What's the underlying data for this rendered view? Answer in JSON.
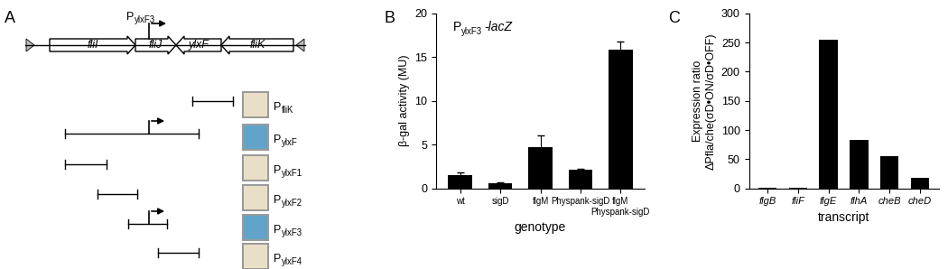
{
  "panel_labels": [
    "A",
    "B",
    "C"
  ],
  "diagram": {
    "genes": [
      {
        "name": "fliI",
        "direction": "right"
      },
      {
        "name": "fliJ",
        "direction": "right"
      },
      {
        "name": "ylxF",
        "direction": "left"
      },
      {
        "name": "fliK",
        "direction": "left"
      }
    ],
    "promoter": {
      "text": "P",
      "sub": "ylxF3"
    },
    "fragments": [
      {
        "text": "P",
        "sub": "fliK",
        "promoter": false,
        "color": "#e9dfc6"
      },
      {
        "text": "P",
        "sub": "ylxF",
        "promoter": true,
        "color": "#62a4c9"
      },
      {
        "text": "P",
        "sub": "ylxF1",
        "promoter": false,
        "color": "#e9dfc6"
      },
      {
        "text": "P",
        "sub": "ylxF2",
        "promoter": false,
        "color": "#e9dfc6"
      },
      {
        "text": "P",
        "sub": "ylxF3",
        "promoter": true,
        "color": "#62a4c9"
      },
      {
        "text": "P",
        "sub": "ylxF4",
        "promoter": false,
        "color": "#e9dfc6"
      }
    ]
  },
  "chart_data": [
    {
      "type": "bar",
      "title": {
        "text": "P",
        "sub": "ylxF3",
        "suffix": "-lacZ"
      },
      "categories": [
        "wt",
        "sigD",
        "flgM",
        "Physpank-sigD",
        "flgM\nPhyspank-sigD"
      ],
      "values": [
        1.5,
        0.55,
        4.7,
        2.1,
        15.9
      ],
      "errors": [
        0.3,
        0.1,
        1.3,
        0.15,
        0.9
      ],
      "color": "#000000",
      "xlabel": "genotype",
      "ylabel": "β-gal activity (MU)",
      "ylim": [
        0,
        20
      ],
      "yticks": [
        0,
        5,
        10,
        15,
        20
      ]
    },
    {
      "type": "bar",
      "categories": [
        "flgB",
        "fliF",
        "flgE",
        "flhA",
        "cheB",
        "cheD"
      ],
      "values": [
        1,
        1,
        255,
        83,
        55,
        18
      ],
      "color": "#000000",
      "xlabel": "transcript",
      "ylabel": "Expression ratio\nΔPfla/che(σD•ON/σD•OFF)",
      "ylim": [
        0,
        300
      ],
      "yticks": [
        0,
        50,
        100,
        150,
        200,
        250,
        300
      ]
    }
  ]
}
